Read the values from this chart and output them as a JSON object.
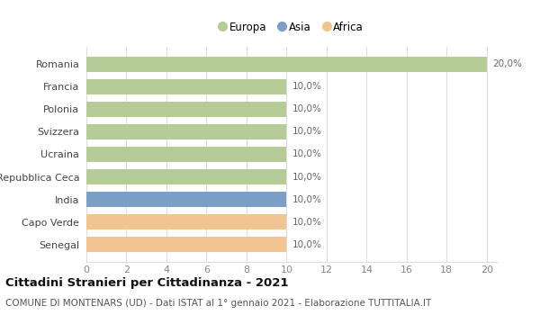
{
  "categories": [
    "Senegal",
    "Capo Verde",
    "India",
    "Repubblica Ceca",
    "Ucraina",
    "Svizzera",
    "Polonia",
    "Francia",
    "Romania"
  ],
  "values": [
    10,
    10,
    10,
    10,
    10,
    10,
    10,
    10,
    20
  ],
  "bar_colors": [
    "#f2c491",
    "#f2c491",
    "#7b9fc7",
    "#b5cc96",
    "#b5cc96",
    "#b5cc96",
    "#b5cc96",
    "#b5cc96",
    "#b5cc96"
  ],
  "labels": [
    "10,0%",
    "10,0%",
    "10,0%",
    "10,0%",
    "10,0%",
    "10,0%",
    "10,0%",
    "10,0%",
    "20,0%"
  ],
  "xlim": [
    0,
    20.5
  ],
  "xticks": [
    0,
    2,
    4,
    6,
    8,
    10,
    12,
    14,
    16,
    18,
    20
  ],
  "legend": [
    {
      "label": "Europa",
      "color": "#b5cc96"
    },
    {
      "label": "Asia",
      "color": "#7b9fc7"
    },
    {
      "label": "Africa",
      "color": "#f2c491"
    }
  ],
  "title": "Cittadini Stranieri per Cittadinanza - 2021",
  "subtitle": "COMUNE DI MONTENARS (UD) - Dati ISTAT al 1° gennaio 2021 - Elaborazione TUTTITALIA.IT",
  "background_color": "#ffffff",
  "grid_color": "#dddddd",
  "bar_height": 0.65,
  "label_fontsize": 7.5,
  "title_fontsize": 9.5,
  "subtitle_fontsize": 7.5,
  "yticklabel_fontsize": 8,
  "xticklabel_fontsize": 8
}
